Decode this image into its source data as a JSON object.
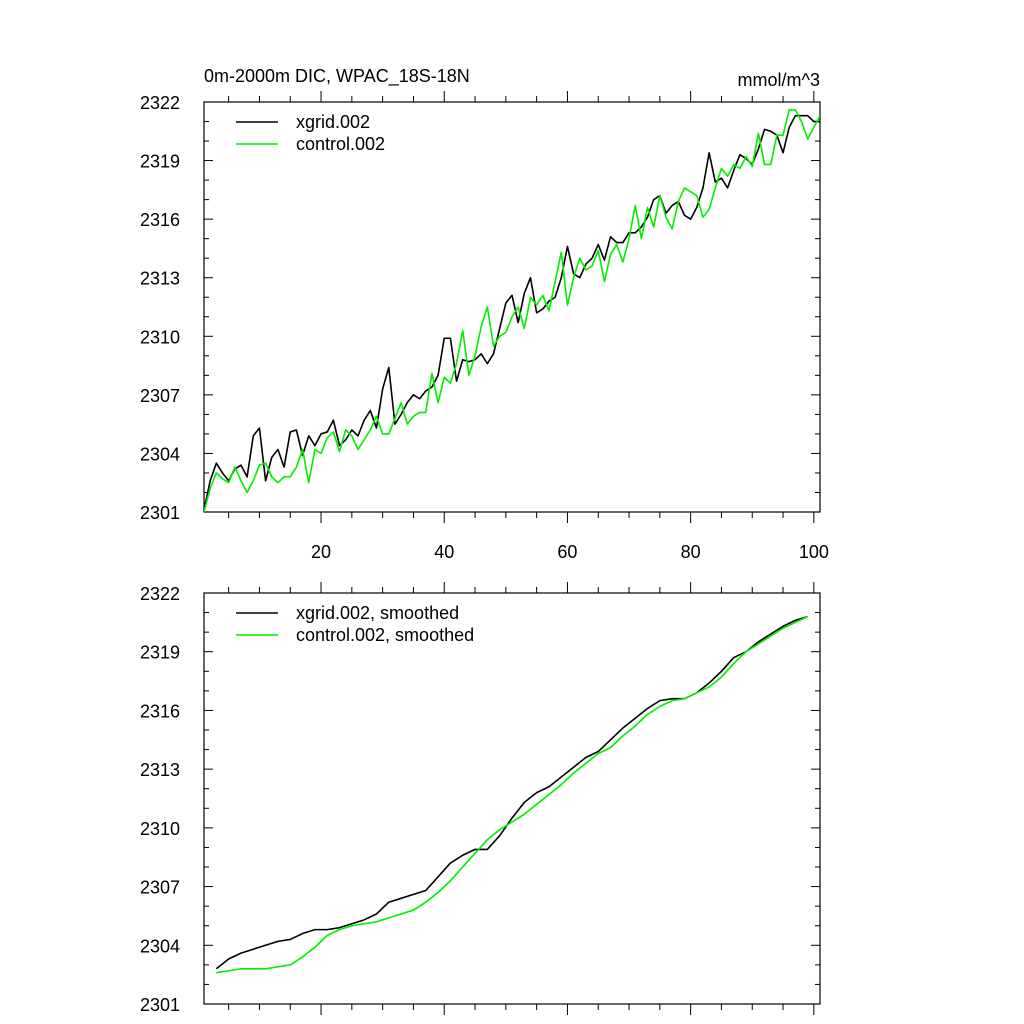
{
  "title_left": "0m-2000m DIC, WPAC_18S-18N",
  "title_right": "mmol/m^3",
  "colors": {
    "xgrid": "#000000",
    "control": "#00ee00"
  },
  "chart_data": [
    {
      "type": "line",
      "panel": "top",
      "xlim": [
        1,
        101
      ],
      "ylim": [
        2301,
        2322
      ],
      "yticks": [
        2301,
        2304,
        2307,
        2310,
        2313,
        2316,
        2319,
        2322
      ],
      "xticks": [
        20,
        40,
        60,
        80,
        100
      ],
      "xtick_labels": [
        "20",
        "40",
        "60",
        "80",
        "100"
      ],
      "legend_position": "top-left",
      "series": [
        {
          "name": "xgrid.002",
          "color": "#000000",
          "x": [
            1,
            2,
            3,
            4,
            5,
            6,
            7,
            8,
            9,
            10,
            11,
            12,
            13,
            14,
            15,
            16,
            17,
            18,
            19,
            20,
            21,
            22,
            23,
            24,
            25,
            26,
            27,
            28,
            29,
            30,
            31,
            32,
            33,
            34,
            35,
            36,
            37,
            38,
            39,
            40,
            41,
            42,
            43,
            44,
            45,
            46,
            47,
            48,
            49,
            50,
            51,
            52,
            53,
            54,
            55,
            56,
            57,
            58,
            59,
            60,
            61,
            62,
            63,
            64,
            65,
            66,
            67,
            68,
            69,
            70,
            71,
            72,
            73,
            74,
            75,
            76,
            77,
            78,
            79,
            80,
            81,
            82,
            83,
            84,
            85,
            86,
            87,
            88,
            89,
            90,
            91,
            92,
            93,
            94,
            95,
            96,
            97,
            98,
            99,
            100,
            101
          ],
          "values": [
            2301.1,
            2302.6,
            2303.5,
            2303.0,
            2302.6,
            2303.2,
            2303.4,
            2302.8,
            2304.9,
            2305.3,
            2302.6,
            2303.8,
            2304.2,
            2303.3,
            2305.1,
            2305.2,
            2303.9,
            2304.9,
            2304.4,
            2305.0,
            2305.1,
            2305.7,
            2304.4,
            2304.7,
            2305.2,
            2304.9,
            2305.7,
            2306.2,
            2305.3,
            2307.3,
            2308.4,
            2305.5,
            2306.0,
            2306.6,
            2307.0,
            2306.8,
            2307.2,
            2307.4,
            2308.0,
            2309.9,
            2309.9,
            2307.7,
            2308.8,
            2308.7,
            2308.8,
            2309.1,
            2308.6,
            2309.1,
            2310.4,
            2311.7,
            2312.1,
            2310.7,
            2312.2,
            2313.0,
            2311.2,
            2311.4,
            2311.8,
            2312.0,
            2313.0,
            2314.6,
            2313.2,
            2313.0,
            2313.7,
            2314.0,
            2314.7,
            2313.9,
            2315.1,
            2314.8,
            2314.8,
            2315.3,
            2315.3,
            2315.6,
            2316.1,
            2317.0,
            2317.2,
            2316.3,
            2316.7,
            2316.9,
            2316.2,
            2316.0,
            2316.6,
            2317.6,
            2319.4,
            2317.9,
            2318.1,
            2317.6,
            2318.5,
            2319.3,
            2319.1,
            2318.8,
            2319.6,
            2320.6,
            2320.5,
            2320.3,
            2319.4,
            2320.7,
            2321.3,
            2321.3,
            2321.3,
            2321.0,
            2321.0
          ]
        },
        {
          "name": "control.002",
          "color": "#00ee00",
          "x": [
            1,
            2,
            3,
            4,
            5,
            6,
            7,
            8,
            9,
            10,
            11,
            12,
            13,
            14,
            15,
            16,
            17,
            18,
            19,
            20,
            21,
            22,
            23,
            24,
            25,
            26,
            27,
            28,
            29,
            30,
            31,
            32,
            33,
            34,
            35,
            36,
            37,
            38,
            39,
            40,
            41,
            42,
            43,
            44,
            45,
            46,
            47,
            48,
            49,
            50,
            51,
            52,
            53,
            54,
            55,
            56,
            57,
            58,
            59,
            60,
            61,
            62,
            63,
            64,
            65,
            66,
            67,
            68,
            69,
            70,
            71,
            72,
            73,
            74,
            75,
            76,
            77,
            78,
            79,
            80,
            81,
            82,
            83,
            84,
            85,
            86,
            87,
            88,
            89,
            90,
            91,
            92,
            93,
            94,
            95,
            96,
            97,
            98,
            99,
            100,
            101
          ],
          "values": [
            2301.0,
            2302.2,
            2303.0,
            2302.7,
            2302.5,
            2303.3,
            2302.6,
            2302.0,
            2302.6,
            2303.4,
            2303.5,
            2302.8,
            2302.5,
            2302.8,
            2302.8,
            2303.3,
            2304.2,
            2302.5,
            2304.2,
            2304.0,
            2304.8,
            2305.1,
            2304.1,
            2305.2,
            2304.9,
            2304.2,
            2304.7,
            2305.2,
            2305.9,
            2305.0,
            2305.0,
            2305.8,
            2306.6,
            2305.5,
            2305.9,
            2306.1,
            2306.1,
            2308.1,
            2306.6,
            2307.9,
            2307.6,
            2308.6,
            2310.3,
            2308.0,
            2309.0,
            2310.5,
            2311.5,
            2309.5,
            2310.0,
            2310.2,
            2311.0,
            2311.5,
            2310.4,
            2312.0,
            2311.6,
            2312.1,
            2311.3,
            2312.8,
            2314.3,
            2311.6,
            2313.0,
            2314.0,
            2313.4,
            2313.6,
            2314.4,
            2312.8,
            2314.2,
            2314.7,
            2313.8,
            2315.0,
            2316.7,
            2315.0,
            2316.6,
            2315.6,
            2317.2,
            2316.1,
            2315.5,
            2316.9,
            2317.6,
            2317.4,
            2317.2,
            2316.1,
            2316.5,
            2317.6,
            2318.6,
            2318.2,
            2318.8,
            2318.6,
            2319.2,
            2318.7,
            2320.4,
            2318.8,
            2318.8,
            2320.3,
            2320.3,
            2321.6,
            2321.6,
            2321.0,
            2320.1,
            2320.7,
            2321.3
          ]
        }
      ]
    },
    {
      "type": "line",
      "panel": "bottom",
      "xlim": [
        1,
        101
      ],
      "ylim": [
        2301,
        2322
      ],
      "yticks": [
        2301,
        2304,
        2307,
        2310,
        2313,
        2316,
        2319,
        2322
      ],
      "legend_position": "top-left",
      "series": [
        {
          "name": "xgrid.002, smoothed",
          "color": "#000000",
          "x": [
            3,
            5,
            7,
            9,
            11,
            13,
            15,
            17,
            19,
            21,
            23,
            25,
            27,
            29,
            31,
            33,
            35,
            37,
            39,
            41,
            43,
            45,
            47,
            49,
            51,
            53,
            55,
            57,
            59,
            61,
            63,
            65,
            67,
            69,
            71,
            73,
            75,
            77,
            79,
            81,
            83,
            85,
            87,
            89,
            91,
            93,
            95,
            97,
            99
          ],
          "values": [
            2302.8,
            2303.3,
            2303.6,
            2303.8,
            2304.0,
            2304.2,
            2304.3,
            2304.6,
            2304.8,
            2304.8,
            2304.9,
            2305.1,
            2305.3,
            2305.6,
            2306.2,
            2306.4,
            2306.6,
            2306.8,
            2307.5,
            2308.2,
            2308.6,
            2308.9,
            2308.9,
            2309.6,
            2310.5,
            2311.3,
            2311.8,
            2312.1,
            2312.6,
            2313.1,
            2313.6,
            2313.9,
            2314.5,
            2315.1,
            2315.6,
            2316.1,
            2316.5,
            2316.6,
            2316.6,
            2316.9,
            2317.4,
            2318.0,
            2318.7,
            2319.0,
            2319.5,
            2319.9,
            2320.3,
            2320.6,
            2320.8
          ]
        },
        {
          "name": "control.002, smoothed",
          "color": "#00ee00",
          "x": [
            3,
            5,
            7,
            9,
            11,
            13,
            15,
            17,
            19,
            21,
            23,
            25,
            27,
            29,
            31,
            33,
            35,
            37,
            39,
            41,
            43,
            45,
            47,
            49,
            51,
            53,
            55,
            57,
            59,
            61,
            63,
            65,
            67,
            69,
            71,
            73,
            75,
            77,
            79,
            81,
            83,
            85,
            87,
            89,
            91,
            93,
            95,
            97,
            99
          ],
          "values": [
            2302.6,
            2302.7,
            2302.8,
            2302.8,
            2302.8,
            2302.9,
            2303.0,
            2303.4,
            2303.9,
            2304.5,
            2304.8,
            2305.0,
            2305.1,
            2305.2,
            2305.4,
            2305.6,
            2305.8,
            2306.2,
            2306.7,
            2307.3,
            2308.0,
            2308.7,
            2309.4,
            2309.9,
            2310.3,
            2310.7,
            2311.2,
            2311.7,
            2312.2,
            2312.8,
            2313.3,
            2313.8,
            2314.1,
            2314.7,
            2315.2,
            2315.8,
            2316.2,
            2316.5,
            2316.6,
            2316.9,
            2317.2,
            2317.7,
            2318.4,
            2319.0,
            2319.4,
            2319.8,
            2320.2,
            2320.5,
            2320.8
          ]
        }
      ]
    }
  ]
}
